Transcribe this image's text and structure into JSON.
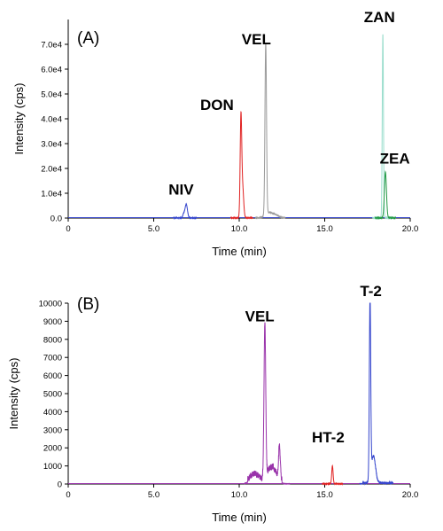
{
  "figure": {
    "background": "#ffffff",
    "axis_color": "#000000"
  },
  "chart_data": [
    {
      "type": "line",
      "panel_label": "(A)",
      "xlabel": "Time (min)",
      "ylabel": "Intensity (cps)",
      "xlim": [
        0,
        20
      ],
      "ylim": [
        0,
        80000
      ],
      "xticks": [
        0,
        5,
        10,
        15,
        20
      ],
      "xtick_labels": [
        "0",
        "5.0",
        "10.0",
        "15.0",
        "20.0"
      ],
      "yticks": [
        0,
        10000,
        20000,
        30000,
        40000,
        50000,
        60000,
        70000
      ],
      "ytick_labels": [
        "0.0",
        "1.0e4",
        "2.0e4",
        "3.0e4",
        "4.0e4",
        "5.0e4",
        "6.0e4",
        "7.0e4"
      ],
      "grid": false,
      "series": [
        {
          "name": "NIV",
          "color": "#3344cc",
          "peaks": [
            {
              "x": 6.9,
              "y": 5500,
              "width": 0.07
            },
            {
              "x": 6.75,
              "y": 1500,
              "width": 0.05
            }
          ]
        },
        {
          "name": "DON",
          "color": "#e02020",
          "peaks": [
            {
              "x": 10.1,
              "y": 39500,
              "width": 0.045
            },
            {
              "x": 10.2,
              "y": 12000,
              "width": 0.06
            }
          ]
        },
        {
          "name": "VEL",
          "color": "#999999",
          "peaks": [
            {
              "x": 11.55,
              "y": 69000,
              "width": 0.045
            },
            {
              "x": 11.7,
              "y": 2000,
              "width": 0.2
            },
            {
              "x": 12.1,
              "y": 1200,
              "width": 0.2
            }
          ]
        },
        {
          "name": "ZAN",
          "color": "#99ddcc",
          "peaks": [
            {
              "x": 18.4,
              "y": 74000,
              "width": 0.035
            }
          ]
        },
        {
          "name": "ZEA",
          "color": "#229944",
          "peaks": [
            {
              "x": 18.55,
              "y": 18500,
              "width": 0.06
            }
          ]
        }
      ],
      "annotations": [
        {
          "text": "NIV",
          "x": 6.6,
          "y": 9500
        },
        {
          "text": "DON",
          "x": 8.7,
          "y": 43500
        },
        {
          "text": "VEL",
          "x": 11.0,
          "y": 70000
        },
        {
          "text": "ZAN",
          "x": 18.2,
          "y": 79000
        },
        {
          "text": "ZEA",
          "x": 19.1,
          "y": 22000
        }
      ]
    },
    {
      "type": "line",
      "panel_label": "(B)",
      "xlabel": "Time (min)",
      "ylabel": "Intensity (cps)",
      "xlim": [
        0,
        20
      ],
      "ylim": [
        0,
        10000
      ],
      "xticks": [
        0,
        5,
        10,
        15,
        20
      ],
      "xtick_labels": [
        "0",
        "5.0",
        "10.0",
        "15.0",
        "20.0"
      ],
      "yticks": [
        0,
        1000,
        2000,
        3000,
        4000,
        5000,
        6000,
        7000,
        8000,
        9000,
        10000
      ],
      "ytick_labels": [
        "0",
        "1000",
        "2000",
        "3000",
        "4000",
        "5000",
        "6000",
        "7000",
        "8000",
        "9000",
        "10000"
      ],
      "grid": false,
      "series": [
        {
          "name": "VEL",
          "color": "#9933aa",
          "peaks": [
            {
              "x": 11.5,
              "y": 8500,
              "width": 0.05
            },
            {
              "x": 10.9,
              "y": 400,
              "width": 0.25
            },
            {
              "x": 11.9,
              "y": 800,
              "width": 0.25
            },
            {
              "x": 12.35,
              "y": 1800,
              "width": 0.05
            }
          ],
          "noise_range": [
            10.5,
            12.5
          ],
          "noise_level": 350
        },
        {
          "name": "HT-2",
          "color": "#e02020",
          "peaks": [
            {
              "x": 15.45,
              "y": 1000,
              "width": 0.04
            }
          ]
        },
        {
          "name": "T-2",
          "color": "#3344cc",
          "peaks": [
            {
              "x": 17.65,
              "y": 10000,
              "width": 0.04
            },
            {
              "x": 17.85,
              "y": 1500,
              "width": 0.12
            }
          ],
          "noise_range": [
            17.2,
            19.0
          ],
          "noise_level": 120
        }
      ],
      "annotations": [
        {
          "text": "VEL",
          "x": 11.2,
          "y": 9000
        },
        {
          "text": "HT-2",
          "x": 15.2,
          "y": 2300
        },
        {
          "text": "T-2",
          "x": 17.7,
          "y": 10400
        }
      ]
    }
  ]
}
